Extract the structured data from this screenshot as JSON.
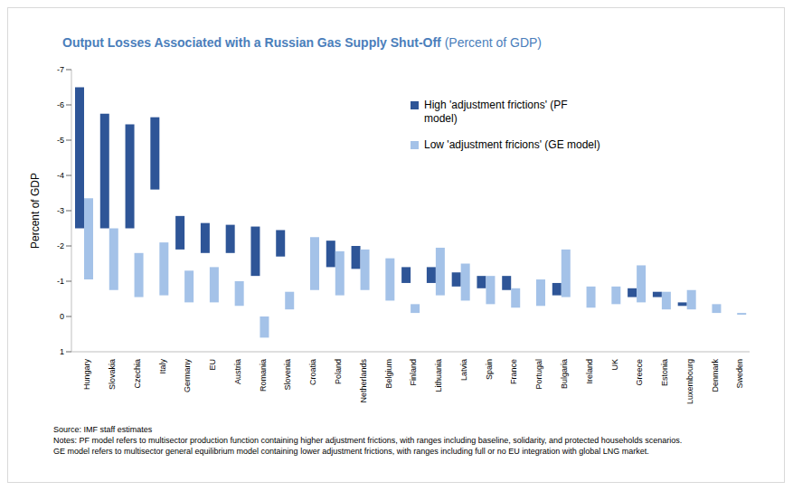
{
  "chart_data": {
    "type": "bar",
    "title": "Output Losses Associated with a Russian Gas Supply Shut-Off",
    "subtitle": "(Percent of GDP)",
    "y_label": "Percent of GDP",
    "categories": [
      "Hungary",
      "Slovakia",
      "Czechia",
      "Italy",
      "Germany",
      "EU",
      "Austria",
      "Romania",
      "Slovenia",
      "Croatia",
      "Poland",
      "Netherlands",
      "Belgium",
      "Finland",
      "Lithuania",
      "Latvia",
      "Spain",
      "France",
      "Portugal",
      "Bulgaria",
      "Ireland",
      "UK",
      "Greece",
      "Estonia",
      "Luxembourg",
      "Denmark",
      "Sweden"
    ],
    "series": [
      {
        "name": "High 'adjustment frictions' (PF model)",
        "color": "#2e5597",
        "values": [
          [
            -2.5,
            -6.5
          ],
          [
            -2.5,
            -5.75
          ],
          [
            -2.5,
            -5.45
          ],
          [
            -3.6,
            -5.65
          ],
          [
            -1.9,
            -2.85
          ],
          [
            -1.8,
            -2.65
          ],
          [
            -1.8,
            -2.6
          ],
          [
            -1.15,
            -2.55
          ],
          [
            -1.7,
            -2.45
          ],
          null,
          [
            -1.4,
            -2.15
          ],
          [
            -1.35,
            -2.0
          ],
          null,
          [
            -0.95,
            -1.4
          ],
          [
            -0.95,
            -1.4
          ],
          [
            -0.85,
            -1.25
          ],
          [
            -0.8,
            -1.15
          ],
          [
            -0.75,
            -1.15
          ],
          null,
          [
            -0.6,
            -0.95
          ],
          null,
          null,
          [
            -0.55,
            -0.8
          ],
          [
            -0.55,
            -0.7
          ],
          [
            -0.3,
            -0.4
          ],
          null,
          null
        ]
      },
      {
        "name": "Low 'adjustment fricions' (GE model)",
        "color": "#a4c2e8",
        "values": [
          [
            -1.05,
            -3.35
          ],
          [
            -0.75,
            -2.5
          ],
          [
            -0.55,
            -1.8
          ],
          [
            -0.6,
            -2.1
          ],
          [
            -0.4,
            -1.3
          ],
          [
            -0.4,
            -1.4
          ],
          [
            -0.3,
            -1.0
          ],
          [
            0.6,
            0
          ],
          [
            -0.2,
            -0.7
          ],
          [
            -0.75,
            -2.25
          ],
          [
            -0.6,
            -1.85
          ],
          [
            -0.75,
            -1.9
          ],
          [
            -0.45,
            -1.65
          ],
          [
            -0.1,
            -0.35
          ],
          [
            -0.6,
            -1.95
          ],
          [
            -0.45,
            -1.5
          ],
          [
            -0.35,
            -1.15
          ],
          [
            -0.25,
            -0.8
          ],
          [
            -0.3,
            -1.05
          ],
          [
            -0.55,
            -1.9
          ],
          [
            -0.25,
            -0.85
          ],
          [
            -0.35,
            -0.85
          ],
          [
            -0.4,
            -1.45
          ],
          [
            -0.2,
            -0.7
          ],
          [
            -0.2,
            -0.75
          ],
          [
            -0.1,
            -0.35
          ],
          [
            -0.05,
            -0.1
          ]
        ]
      }
    ],
    "ylim": [
      -7,
      1
    ],
    "yticks": [
      -7,
      -6,
      -5,
      -4,
      -3,
      -2,
      -1,
      0,
      1
    ],
    "legend": "top",
    "source": "Source: IMF staff estimates",
    "notes": [
      "Notes: PF model refers to multisector production function containing higher adjustment frictions, with ranges including baseline, solidarity, and protected households scenarios.",
      "GE model refers to multisector general equilibrium model containing lower adjustment frictions, with ranges including full or no EU integration with global LNG market."
    ]
  }
}
